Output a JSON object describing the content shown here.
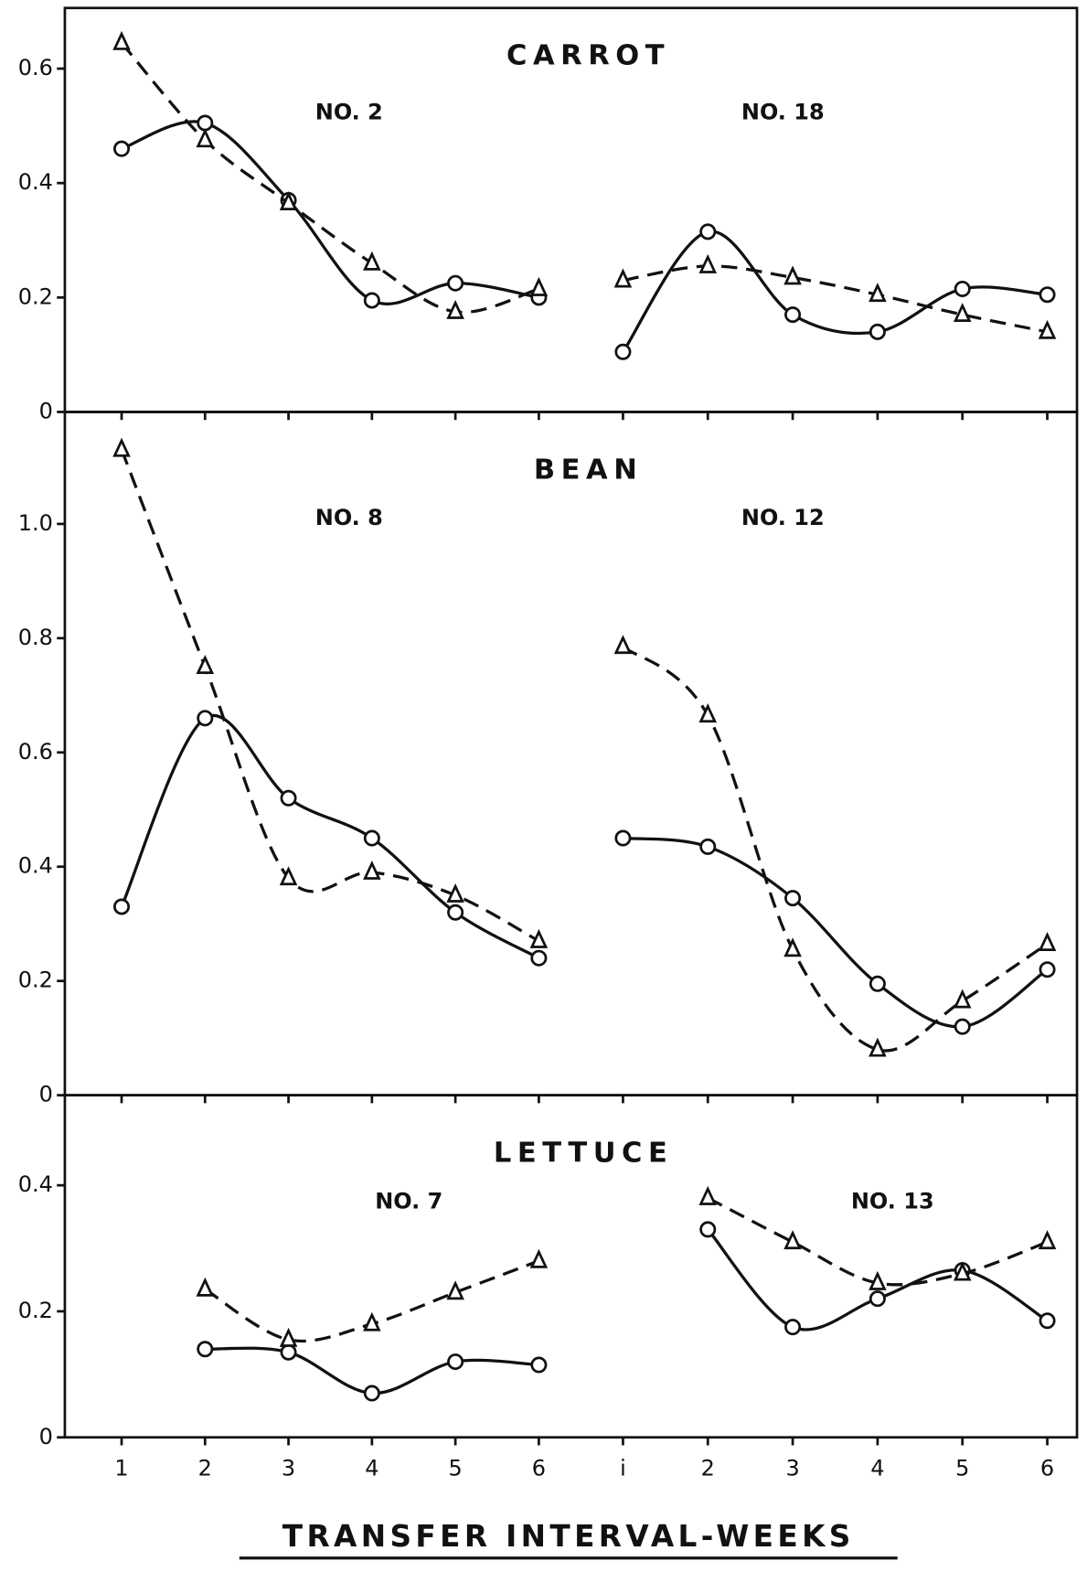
{
  "xlabel": "TRANSFER INTERVAL-WEEKS",
  "chart_data": [
    {
      "type": "line",
      "title": "CARROT",
      "ylim": [
        0,
        0.706
      ],
      "yticks": [
        0,
        0.2,
        0.4,
        0.6
      ],
      "groups": [
        {
          "label": "NO. 2",
          "xlim": [
            0.32,
            6.51
          ],
          "x": [
            1,
            2,
            3,
            4,
            5,
            6
          ],
          "series": [
            {
              "marker": "circle",
              "line": "solid",
              "color": "#111",
              "values": [
                0.46,
                0.505,
                0.37,
                0.195,
                0.225,
                0.2
              ]
            },
            {
              "marker": "triangle",
              "line": "dashed",
              "color": "#111",
              "values": [
                0.645,
                0.475,
                0.365,
                0.26,
                0.175,
                0.215
              ]
            }
          ]
        },
        {
          "label": "NO. 18",
          "xlim": [
            0.51,
            6.35
          ],
          "x": [
            1,
            2,
            3,
            4,
            5,
            6
          ],
          "series": [
            {
              "marker": "circle",
              "line": "solid",
              "color": "#111",
              "values": [
                0.105,
                0.315,
                0.17,
                0.14,
                0.215,
                0.205
              ]
            },
            {
              "marker": "triangle",
              "line": "dashed",
              "color": "#111",
              "values": [
                0.23,
                0.255,
                0.235,
                0.205,
                0.17,
                0.14
              ]
            }
          ]
        }
      ]
    },
    {
      "type": "line",
      "title": "BEAN",
      "ylim": [
        0,
        1.196
      ],
      "yticks": [
        0,
        0.2,
        0.4,
        0.6,
        0.8,
        {
          "value": 1,
          "label": "1.0"
        }
      ],
      "groups": [
        {
          "label": "NO. 8",
          "xlim": [
            0.32,
            6.51
          ],
          "x": [
            1,
            2,
            3,
            4,
            5,
            6
          ],
          "series": [
            {
              "marker": "circle",
              "line": "solid",
              "color": "#111",
              "values": [
                0.33,
                0.66,
                0.52,
                0.45,
                0.32,
                0.24
              ]
            },
            {
              "marker": "triangle",
              "line": "dashed",
              "color": "#111",
              "values": [
                1.13,
                0.75,
                0.38,
                0.39,
                0.35,
                0.27
              ]
            }
          ]
        },
        {
          "label": "NO. 12",
          "xlim": [
            0.51,
            6.35
          ],
          "x": [
            1,
            2,
            3,
            4,
            5,
            6
          ],
          "series": [
            {
              "marker": "circle",
              "line": "solid",
              "color": "#111",
              "values": [
                0.45,
                0.435,
                0.345,
                0.195,
                0.12,
                0.22
              ]
            },
            {
              "marker": "triangle",
              "line": "dashed",
              "color": "#111",
              "values": [
                0.785,
                0.665,
                0.255,
                0.08,
                0.165,
                0.265
              ]
            }
          ]
        }
      ]
    },
    {
      "type": "line",
      "title": "LETTUCE",
      "ylim": [
        0,
        0.543
      ],
      "yticks": [
        0,
        0.2,
        0.4
      ],
      "groups": [
        {
          "label": "NO. 7",
          "xlim": [
            0.32,
            6.51
          ],
          "x": [
            1,
            2,
            3,
            4,
            5,
            6
          ],
          "xticks": [
            1,
            2,
            3,
            4,
            5,
            6
          ],
          "series": [
            {
              "marker": "circle",
              "line": "solid",
              "color": "#111",
              "values": [
                null,
                0.14,
                0.135,
                0.07,
                0.12,
                0.115
              ]
            },
            {
              "marker": "triangle",
              "line": "dashed",
              "color": "#111",
              "values": [
                null,
                0.235,
                0.155,
                0.18,
                0.23,
                0.28
              ]
            }
          ]
        },
        {
          "label": "NO. 13",
          "xlim": [
            0.51,
            6.35
          ],
          "x": [
            1,
            2,
            3,
            4,
            5,
            6
          ],
          "xticks": [
            {
              "value": 1,
              "label": "i"
            },
            2,
            3,
            4,
            5,
            6
          ],
          "series": [
            {
              "marker": "circle",
              "line": "solid",
              "color": "#111",
              "values": [
                null,
                0.33,
                0.175,
                0.22,
                0.265,
                0.185
              ]
            },
            {
              "marker": "triangle",
              "line": "dashed",
              "color": "#111",
              "values": [
                null,
                0.38,
                0.31,
                0.245,
                0.26,
                0.31
              ]
            }
          ]
        }
      ]
    }
  ]
}
